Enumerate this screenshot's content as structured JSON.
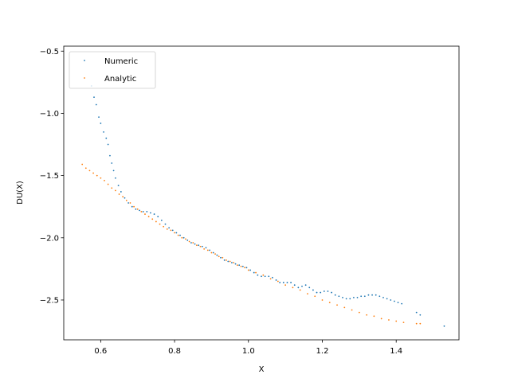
{
  "chart_data": {
    "type": "scatter",
    "title": "",
    "xlabel": "X",
    "ylabel": "DU(X)",
    "xlim": [
      0.5,
      1.57
    ],
    "ylim": [
      -2.82,
      -0.46
    ],
    "xticks": [
      "0.6",
      "0.8",
      "1.0",
      "1.2",
      "1.4"
    ],
    "yticks": [
      "-0.5",
      "-1.0",
      "-1.5",
      "-2.0",
      "-2.5"
    ],
    "grid": false,
    "legend_position": "upper-left",
    "series": [
      {
        "name": "Numeric",
        "color": "#1f77b4",
        "points": [
          [
            0.575,
            -0.78
          ],
          [
            0.582,
            -0.87
          ],
          [
            0.588,
            -0.93
          ],
          [
            0.595,
            -1.03
          ],
          [
            0.6,
            -1.08
          ],
          [
            0.608,
            -1.15
          ],
          [
            0.615,
            -1.2
          ],
          [
            0.62,
            -1.25
          ],
          [
            0.625,
            -1.34
          ],
          [
            0.63,
            -1.4
          ],
          [
            0.635,
            -1.46
          ],
          [
            0.64,
            -1.52
          ],
          [
            0.648,
            -1.58
          ],
          [
            0.655,
            -1.63
          ],
          [
            0.665,
            -1.68
          ],
          [
            0.675,
            -1.72
          ],
          [
            0.685,
            -1.75
          ],
          [
            0.695,
            -1.77
          ],
          [
            0.705,
            -1.78
          ],
          [
            0.715,
            -1.79
          ],
          [
            0.725,
            -1.79
          ],
          [
            0.735,
            -1.8
          ],
          [
            0.745,
            -1.81
          ],
          [
            0.755,
            -1.83
          ],
          [
            0.765,
            -1.86
          ],
          [
            0.775,
            -1.89
          ],
          [
            0.785,
            -1.92
          ],
          [
            0.795,
            -1.94
          ],
          [
            0.805,
            -1.96
          ],
          [
            0.815,
            -1.98
          ],
          [
            0.825,
            -2.0
          ],
          [
            0.835,
            -2.02
          ],
          [
            0.845,
            -2.04
          ],
          [
            0.855,
            -2.05
          ],
          [
            0.865,
            -2.06
          ],
          [
            0.875,
            -2.07
          ],
          [
            0.885,
            -2.08
          ],
          [
            0.895,
            -2.1
          ],
          [
            0.905,
            -2.12
          ],
          [
            0.915,
            -2.14
          ],
          [
            0.925,
            -2.16
          ],
          [
            0.935,
            -2.18
          ],
          [
            0.945,
            -2.19
          ],
          [
            0.955,
            -2.2
          ],
          [
            0.965,
            -2.21
          ],
          [
            0.975,
            -2.22
          ],
          [
            0.985,
            -2.23
          ],
          [
            0.995,
            -2.24
          ],
          [
            1.005,
            -2.26
          ],
          [
            1.015,
            -2.28
          ],
          [
            1.025,
            -2.3
          ],
          [
            1.035,
            -2.31
          ],
          [
            1.045,
            -2.31
          ],
          [
            1.055,
            -2.31
          ],
          [
            1.065,
            -2.32
          ],
          [
            1.075,
            -2.34
          ],
          [
            1.085,
            -2.36
          ],
          [
            1.095,
            -2.36
          ],
          [
            1.105,
            -2.36
          ],
          [
            1.115,
            -2.36
          ],
          [
            1.125,
            -2.38
          ],
          [
            1.135,
            -2.4
          ],
          [
            1.145,
            -2.39
          ],
          [
            1.155,
            -2.38
          ],
          [
            1.165,
            -2.4
          ],
          [
            1.175,
            -2.42
          ],
          [
            1.185,
            -2.44
          ],
          [
            1.195,
            -2.44
          ],
          [
            1.205,
            -2.43
          ],
          [
            1.215,
            -2.43
          ],
          [
            1.225,
            -2.44
          ],
          [
            1.235,
            -2.46
          ],
          [
            1.245,
            -2.47
          ],
          [
            1.255,
            -2.48
          ],
          [
            1.265,
            -2.49
          ],
          [
            1.275,
            -2.49
          ],
          [
            1.285,
            -2.48
          ],
          [
            1.295,
            -2.48
          ],
          [
            1.305,
            -2.47
          ],
          [
            1.315,
            -2.47
          ],
          [
            1.325,
            -2.46
          ],
          [
            1.335,
            -2.46
          ],
          [
            1.345,
            -2.46
          ],
          [
            1.355,
            -2.47
          ],
          [
            1.365,
            -2.48
          ],
          [
            1.375,
            -2.49
          ],
          [
            1.385,
            -2.5
          ],
          [
            1.395,
            -2.51
          ],
          [
            1.405,
            -2.52
          ],
          [
            1.415,
            -2.53
          ],
          [
            1.455,
            -2.6
          ],
          [
            1.465,
            -2.62
          ],
          [
            1.53,
            -2.71
          ]
        ]
      },
      {
        "name": "Analytic",
        "color": "#ff7f0e",
        "points": [
          [
            0.55,
            -1.41
          ],
          [
            0.56,
            -1.44
          ],
          [
            0.57,
            -1.46
          ],
          [
            0.58,
            -1.48
          ],
          [
            0.59,
            -1.5
          ],
          [
            0.6,
            -1.52
          ],
          [
            0.61,
            -1.54
          ],
          [
            0.62,
            -1.57
          ],
          [
            0.63,
            -1.6
          ],
          [
            0.64,
            -1.62
          ],
          [
            0.65,
            -1.65
          ],
          [
            0.66,
            -1.67
          ],
          [
            0.67,
            -1.7
          ],
          [
            0.68,
            -1.72
          ],
          [
            0.69,
            -1.75
          ],
          [
            0.7,
            -1.77
          ],
          [
            0.71,
            -1.79
          ],
          [
            0.72,
            -1.81
          ],
          [
            0.73,
            -1.83
          ],
          [
            0.74,
            -1.85
          ],
          [
            0.75,
            -1.87
          ],
          [
            0.76,
            -1.89
          ],
          [
            0.77,
            -1.91
          ],
          [
            0.78,
            -1.93
          ],
          [
            0.79,
            -1.94
          ],
          [
            0.8,
            -1.96
          ],
          [
            0.81,
            -1.98
          ],
          [
            0.82,
            -2.0
          ],
          [
            0.83,
            -2.01
          ],
          [
            0.84,
            -2.03
          ],
          [
            0.85,
            -2.04
          ],
          [
            0.86,
            -2.06
          ],
          [
            0.87,
            -2.07
          ],
          [
            0.88,
            -2.09
          ],
          [
            0.89,
            -2.1
          ],
          [
            0.9,
            -2.12
          ],
          [
            0.91,
            -2.13
          ],
          [
            0.92,
            -2.15
          ],
          [
            0.93,
            -2.16
          ],
          [
            0.94,
            -2.18
          ],
          [
            0.95,
            -2.19
          ],
          [
            0.96,
            -2.2
          ],
          [
            0.97,
            -2.22
          ],
          [
            0.98,
            -2.23
          ],
          [
            0.99,
            -2.24
          ],
          [
            1.0,
            -2.26
          ],
          [
            1.02,
            -2.28
          ],
          [
            1.04,
            -2.3
          ],
          [
            1.06,
            -2.33
          ],
          [
            1.08,
            -2.35
          ],
          [
            1.1,
            -2.38
          ],
          [
            1.12,
            -2.4
          ],
          [
            1.14,
            -2.42
          ],
          [
            1.16,
            -2.45
          ],
          [
            1.18,
            -2.47
          ],
          [
            1.2,
            -2.5
          ],
          [
            1.22,
            -2.52
          ],
          [
            1.24,
            -2.54
          ],
          [
            1.26,
            -2.56
          ],
          [
            1.28,
            -2.58
          ],
          [
            1.3,
            -2.6
          ],
          [
            1.32,
            -2.62
          ],
          [
            1.34,
            -2.63
          ],
          [
            1.36,
            -2.65
          ],
          [
            1.38,
            -2.66
          ],
          [
            1.4,
            -2.67
          ],
          [
            1.42,
            -2.68
          ],
          [
            1.455,
            -2.69
          ],
          [
            1.465,
            -2.69
          ]
        ]
      }
    ]
  }
}
